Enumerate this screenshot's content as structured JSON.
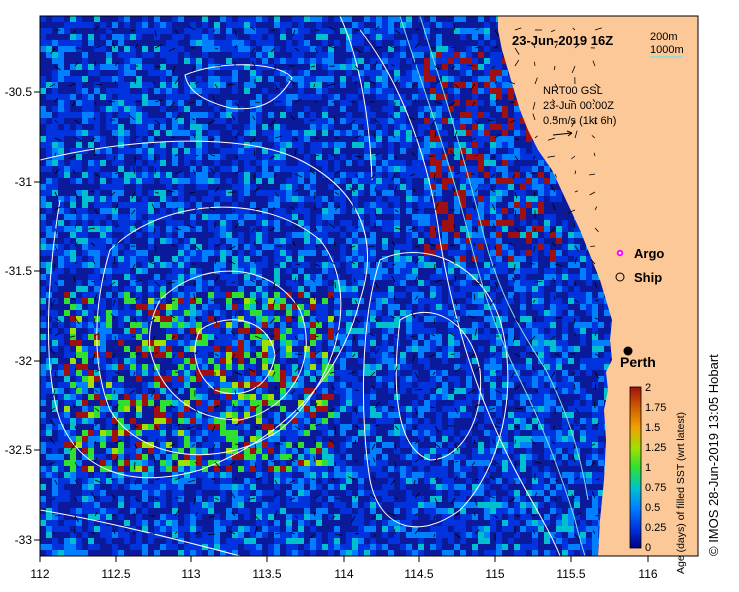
{
  "title": "23-Jun-2019 16Z",
  "depth_legend": {
    "contour_200": "200m",
    "contour_1000": "1000m"
  },
  "current_legend": {
    "line1": "NRT00 GSL",
    "line2": "23-Jun 00:00Z",
    "line3": "0.5m/s (1kt 6h)"
  },
  "markers": {
    "argo": "Argo",
    "ship": "Ship",
    "city": "Perth"
  },
  "colorbar": {
    "label": "Age (days) of filled SST (wrt latest)",
    "ticks": [
      "0",
      "0.25",
      "0.5",
      "0.75",
      "1",
      "1.25",
      "1.5",
      "1.75",
      "2"
    ]
  },
  "axes": {
    "lon_ticks": [
      "112",
      "112.5",
      "113",
      "113.5",
      "114",
      "114.5",
      "115",
      "115.5",
      "116"
    ],
    "lat_ticks": [
      "-30.5",
      "-31",
      "-31.5",
      "-32",
      "-32.5",
      "-33"
    ]
  },
  "credit": "© IMOS 28-Jun-2019 13:05 Hobart",
  "colors": {
    "land": "#fcc898",
    "ocean_dark": "#0a1a9a",
    "contour_200": "#80e0e0",
    "contour_1000": "#ffffff",
    "argo": "#ff00ff",
    "age_scale": [
      "#00007f",
      "#0033dd",
      "#0080ff",
      "#00c0d0",
      "#20d880",
      "#30e030",
      "#a0e000",
      "#f0a000",
      "#d06000",
      "#a01010"
    ]
  }
}
